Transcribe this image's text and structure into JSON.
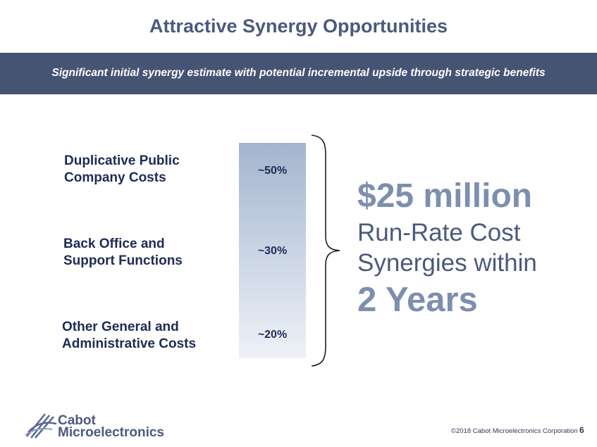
{
  "slide": {
    "title": "Attractive Synergy Opportunities",
    "banner": "Significant initial synergy estimate with potential incremental upside through strategic benefits"
  },
  "categories": [
    {
      "line1": "Duplicative Public",
      "line2": "Company Costs",
      "percent": "~50%"
    },
    {
      "line1": "Back Office and",
      "line2": "Support Functions",
      "percent": "~30%"
    },
    {
      "line1": "Other General and",
      "line2": "Administrative Costs",
      "percent": "~20%"
    }
  ],
  "summary": {
    "amount": "$25 million",
    "line1": "Run-Rate Cost",
    "line2": "Synergies within",
    "duration": "2 Years"
  },
  "logo": {
    "line1": "Cabot",
    "line2": "Microelectronics"
  },
  "footer": {
    "copyright": "©2018 Cabot Microelectronics Corporation",
    "page": "6"
  },
  "colors": {
    "banner": "#465474",
    "accent": "#7d8fae",
    "text_dark": "#1e2b55"
  }
}
